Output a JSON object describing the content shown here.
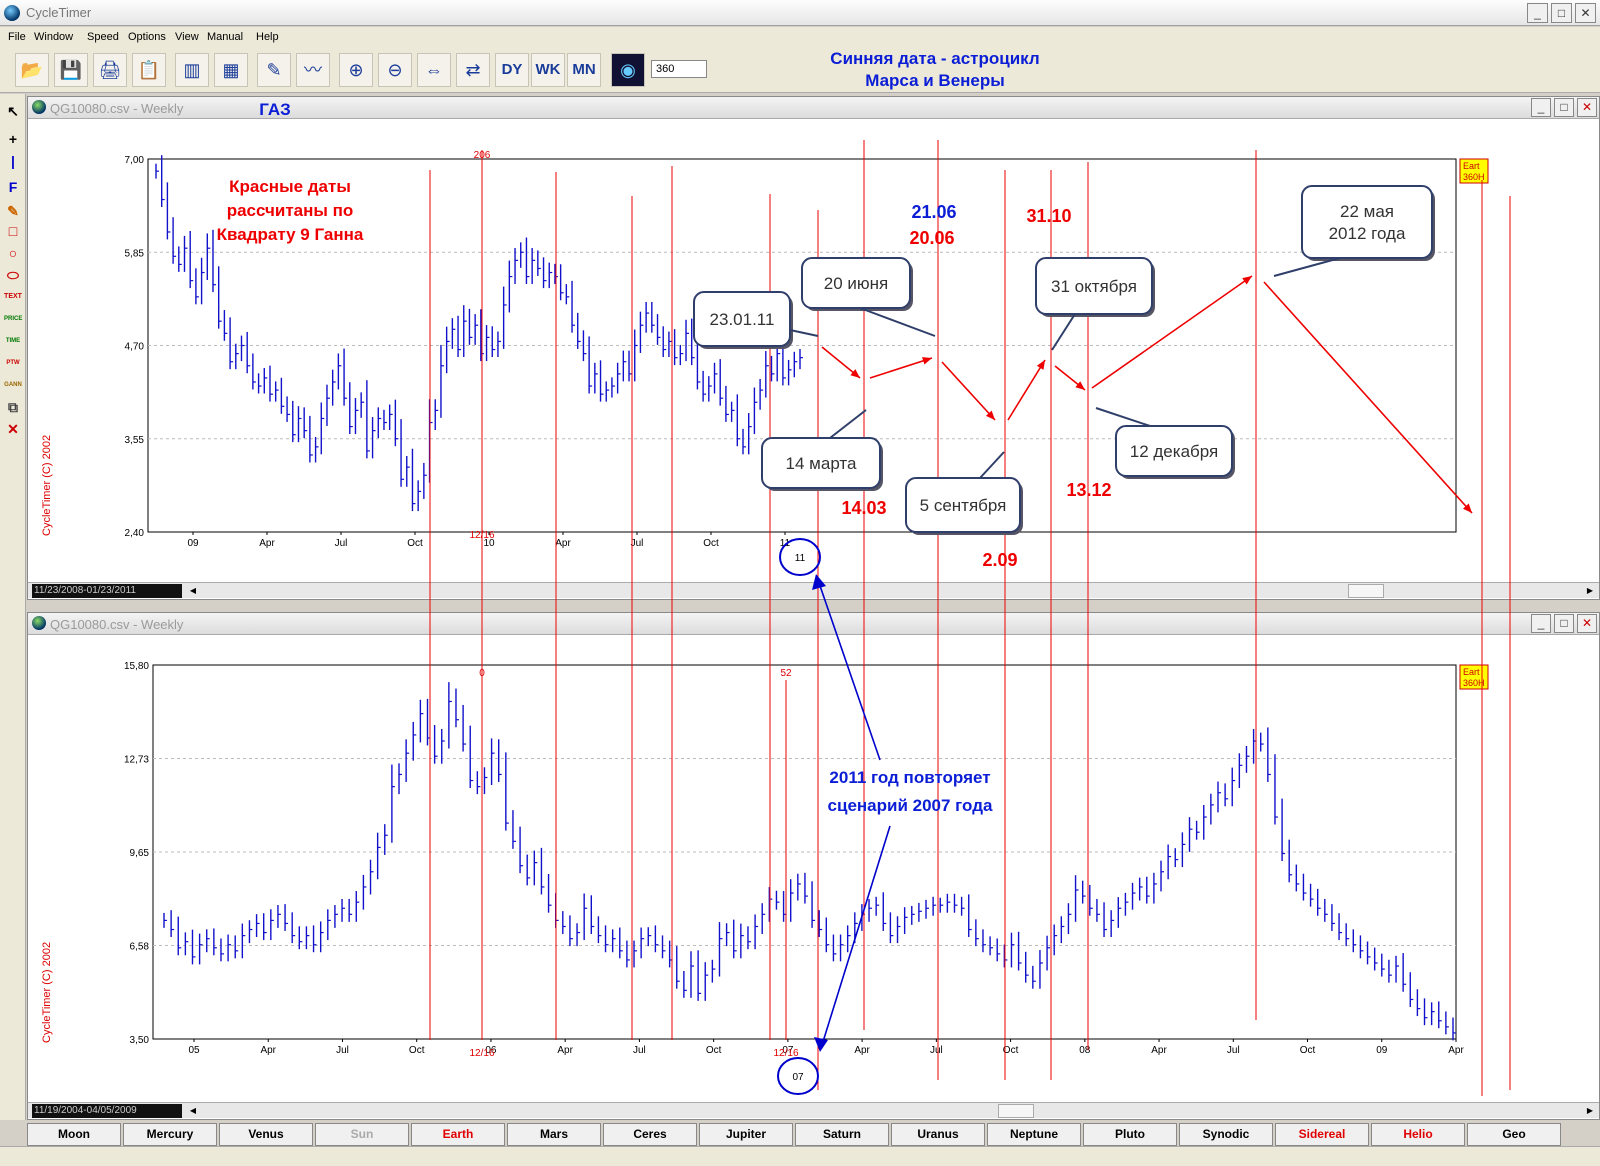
{
  "app": {
    "title": "CycleTimer"
  },
  "menu": [
    "File",
    "Window",
    "Speed",
    "Options",
    "View",
    "Manual",
    "Help"
  ],
  "toolbar": {
    "zoom_value": "360",
    "icons": [
      "open-icon",
      "save-icon",
      "print-icon",
      "clipboard-icon",
      "bar-chart-icon",
      "spreadsheet-icon",
      "eraser-icon",
      "chart-icon",
      "zoom-in-icon",
      "zoom-out-icon",
      "expand-icon",
      "compress-icon",
      "daily-icon",
      "weekly-icon",
      "monthly-icon",
      "planet-icon"
    ],
    "labels": {
      "daily": "DY",
      "weekly": "WK",
      "monthly": "MN"
    }
  },
  "header_note": {
    "line1": "Синняя дата - астроцикл",
    "line2": "Марса и Венеры"
  },
  "gas_label": "ГАЗ",
  "left_tools": {
    "price": "PRICE",
    "time": "TIME",
    "ptw": "PTW",
    "gann": "GANN",
    "text": "TEXT",
    "f": "F"
  },
  "windows": [
    {
      "title": "QG10080.csv - Weekly",
      "range": "11/23/2008-01/23/2011",
      "copyright": "CycleTimer (C) 2002"
    },
    {
      "title": "QG10080.csv - Weekly",
      "range": "11/19/2004-04/05/2009",
      "copyright": "CycleTimer (C) 2002"
    }
  ],
  "chart_data": [
    {
      "type": "bar",
      "title": "QG10080.csv - Weekly",
      "ylim": [
        2.4,
        7.0
      ],
      "yticks": [
        "7,00",
        "5,85",
        "4,70",
        "3,55",
        "2,40"
      ],
      "xticks": [
        "09",
        "Apr",
        "Jul",
        "Oct",
        "10",
        "Apr",
        "Jul",
        "Oct",
        "11"
      ],
      "series": [
        {
          "name": "",
          "color": "#1111cc",
          "values": [
            6.85,
            6.5,
            6.1,
            5.8,
            5.7,
            5.9,
            5.5,
            5.3,
            5.6,
            5.9,
            5.45,
            5.0,
            4.85,
            4.5,
            4.6,
            4.7,
            4.45,
            4.25,
            4.2,
            4.3,
            4.1,
            4.15,
            3.95,
            3.85,
            3.6,
            3.8,
            3.65,
            3.35,
            3.45,
            3.8,
            4.05,
            4.25,
            4.45,
            4.05,
            3.7,
            3.9,
            4.0,
            3.4,
            3.65,
            3.8,
            3.75,
            3.85,
            3.55,
            3.05,
            3.2,
            2.75,
            2.9,
            3.1,
            3.75,
            3.9,
            4.45,
            4.75,
            4.9,
            4.65,
            5.0,
            4.8,
            4.95,
            4.6,
            4.8,
            4.65,
            4.75,
            5.2,
            5.55,
            5.75,
            5.85,
            5.55,
            5.75,
            5.65,
            5.5,
            5.6,
            5.55,
            5.35,
            5.3,
            4.95,
            4.75,
            4.6,
            4.2,
            4.35,
            4.1,
            4.15,
            4.2,
            4.35,
            4.5,
            4.35,
            4.7,
            4.95,
            5.1,
            4.95,
            4.8,
            4.65,
            4.75,
            4.55,
            4.6,
            4.85,
            4.55,
            4.25,
            4.1,
            4.2,
            4.35,
            4.05,
            3.85,
            3.9,
            3.55,
            3.45,
            3.7,
            4.0,
            4.15,
            4.45,
            4.35,
            4.6,
            4.3,
            4.4,
            4.5,
            4.55
          ]
        }
      ],
      "annotations": {
        "red_note": [
          "Красные даты",
          "рассчитаны по",
          "Квадрату 9 Ганна"
        ],
        "dates_red": [
          "14.03",
          "20.06",
          "2.09",
          "31.10",
          "13.12"
        ],
        "date_blue": "21.06",
        "callouts": [
          "23.01.11",
          "20 июня",
          "14 марта",
          "5 сентября",
          "31 октября",
          "12 декабря",
          "22 мая",
          "2012 года"
        ],
        "cycle_labels": [
          "206",
          "12/16"
        ],
        "side_label": [
          "Eart",
          "360H"
        ],
        "circled": "11"
      }
    },
    {
      "type": "bar",
      "title": "QG10080.csv - Weekly",
      "ylim": [
        3.5,
        15.8
      ],
      "yticks": [
        "15,80",
        "12,73",
        "9,65",
        "6,58",
        "3,50"
      ],
      "xticks": [
        "05",
        "Apr",
        "Jul",
        "Oct",
        "06",
        "Apr",
        "Jul",
        "Oct",
        "07",
        "Apr",
        "Jul",
        "Oct",
        "08",
        "Apr",
        "Jul",
        "Oct",
        "09",
        "Apr"
      ],
      "series": [
        {
          "name": "",
          "color": "#1111cc",
          "values": [
            7.4,
            7.1,
            6.5,
            6.7,
            6.2,
            6.6,
            6.8,
            6.5,
            6.3,
            6.6,
            6.4,
            6.9,
            7.1,
            7.3,
            7.0,
            7.4,
            7.6,
            7.3,
            6.9,
            6.7,
            6.9,
            6.6,
            7.0,
            7.4,
            7.6,
            7.8,
            7.6,
            8.0,
            8.5,
            9.0,
            9.8,
            10.2,
            11.8,
            12.2,
            12.9,
            13.5,
            14.2,
            13.4,
            12.8,
            13.3,
            14.6,
            14.0,
            13.2,
            12.0,
            11.8,
            12.1,
            12.9,
            12.2,
            10.6,
            10.0,
            9.2,
            8.8,
            9.3,
            8.5,
            7.9,
            7.4,
            7.2,
            6.8,
            7.0,
            7.8,
            7.2,
            6.9,
            6.6,
            6.8,
            6.4,
            6.1,
            6.4,
            6.8,
            6.9,
            6.6,
            6.4,
            6.1,
            5.4,
            5.1,
            5.9,
            5.0,
            5.6,
            5.8,
            6.8,
            7.0,
            6.4,
            6.9,
            6.7,
            7.2,
            7.6,
            8.1,
            8.0,
            7.6,
            8.3,
            8.6,
            8.2,
            7.4,
            7.1,
            6.6,
            6.3,
            6.6,
            6.9,
            7.3,
            7.6,
            7.8,
            7.9,
            7.3,
            6.9,
            7.2,
            7.5,
            7.6,
            7.7,
            7.8,
            7.9,
            7.9,
            8.0,
            7.9,
            7.8,
            7.1,
            6.8,
            6.6,
            6.5,
            6.3,
            6.1,
            6.6,
            6.0,
            5.6,
            5.4,
            6.0,
            6.5,
            6.9,
            7.2,
            7.6,
            8.4,
            8.2,
            7.8,
            7.6,
            7.1,
            7.4,
            7.8,
            8.0,
            8.3,
            8.5,
            8.2,
            8.6,
            9.0,
            9.5,
            9.4,
            9.9,
            10.4,
            10.3,
            10.8,
            11.2,
            11.6,
            11.4,
            12.0,
            12.5,
            12.8,
            13.3,
            13.2,
            12.2,
            10.8,
            9.6,
            8.9,
            8.6,
            8.3,
            8.1,
            7.8,
            7.6,
            7.3,
            7.0,
            6.8,
            6.6,
            6.4,
            6.2,
            6.0,
            5.8,
            5.6,
            5.9,
            5.3,
            4.8,
            4.5,
            4.2,
            4.4,
            4.1,
            3.9,
            3.7
          ]
        }
      ],
      "annotations": {
        "blue_note": [
          "2011 год повторяет",
          "сценарий 2007 года"
        ],
        "cycle_labels": [
          "0",
          "52",
          "12/16",
          "12/16"
        ],
        "side_label": [
          "Eart",
          "360H"
        ],
        "circled": "07"
      }
    }
  ],
  "planet_tabs": [
    {
      "label": "Moon",
      "color": "#000000"
    },
    {
      "label": "Mercury",
      "color": "#000000"
    },
    {
      "label": "Venus",
      "color": "#000000"
    },
    {
      "label": "Sun",
      "color": "#aaaaaa"
    },
    {
      "label": "Earth",
      "color": "#e00000"
    },
    {
      "label": "Mars",
      "color": "#000000"
    },
    {
      "label": "Ceres",
      "color": "#000000"
    },
    {
      "label": "Jupiter",
      "color": "#000000"
    },
    {
      "label": "Saturn",
      "color": "#000000"
    },
    {
      "label": "Uranus",
      "color": "#000000"
    },
    {
      "label": "Neptune",
      "color": "#000000"
    },
    {
      "label": "Pluto",
      "color": "#000000"
    },
    {
      "label": "Synodic",
      "color": "#000000"
    },
    {
      "label": "Sidereal",
      "color": "#e00000"
    },
    {
      "label": "Helio",
      "color": "#e00000"
    },
    {
      "label": "Geo",
      "color": "#000000"
    }
  ]
}
